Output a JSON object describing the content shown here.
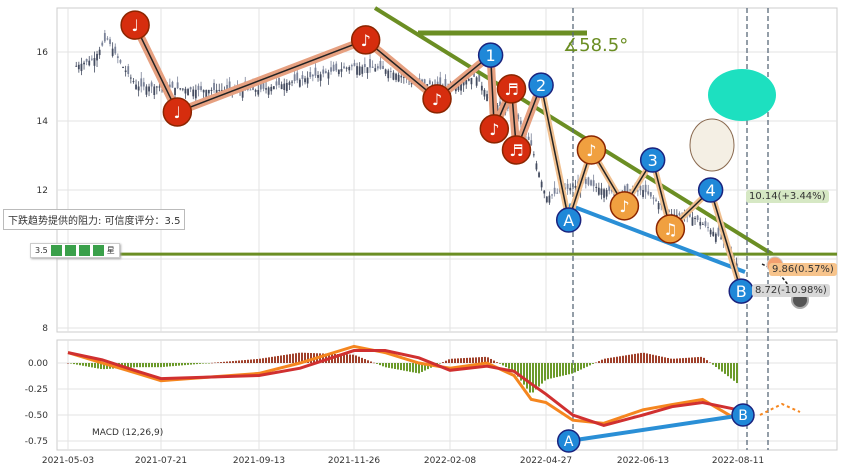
{
  "chart_data": [
    {
      "type": "candlestick",
      "title": "",
      "xlabel": "",
      "ylabel": "",
      "ylim": [
        7.8,
        17.3
      ],
      "grid": true,
      "x_tick_labels": [
        "2021-05-03",
        "2021-07-21",
        "2021-09-13",
        "2021-11-26",
        "2022-02-08",
        "2022-04-27",
        "2022-06-13",
        "2022-08-11"
      ],
      "y_ticks": [
        8,
        12,
        14,
        16
      ],
      "y_tick_labels": [
        "8",
        "12",
        "14",
        "16"
      ],
      "price_path": [
        [
          "2021-05-10",
          15.6
        ],
        [
          "2021-05-25",
          15.8
        ],
        [
          "2021-06-05",
          16.4
        ],
        [
          "2021-06-18",
          15.6
        ],
        [
          "2021-07-01",
          15.0
        ],
        [
          "2021-07-21",
          15.0
        ],
        [
          "2021-08-10",
          14.9
        ],
        [
          "2021-09-13",
          14.9
        ],
        [
          "2021-10-15",
          15.2
        ],
        [
          "2021-11-26",
          15.6
        ],
        [
          "2021-12-20",
          15.5
        ],
        [
          "2022-01-15",
          15.1
        ],
        [
          "2022-02-08",
          15.0
        ],
        [
          "2022-03-01",
          15.3
        ],
        [
          "2022-03-15",
          14.5
        ],
        [
          "2022-04-01",
          14.3
        ],
        [
          "2022-04-15",
          13.3
        ],
        [
          "2022-04-27",
          11.8
        ],
        [
          "2022-05-15",
          12.2
        ],
        [
          "2022-06-01",
          11.9
        ],
        [
          "2022-06-13",
          12.0
        ],
        [
          "2022-07-01",
          11.3
        ],
        [
          "2022-07-15",
          11.2
        ],
        [
          "2022-08-01",
          10.6
        ],
        [
          "2022-08-11",
          9.8
        ]
      ],
      "resistance_level": 10.14,
      "annotations": {
        "resistance_text": "下跌趋势提供的阻力: 可信度评分：3.5",
        "rating_text": "3.5",
        "rating_suffix": "星",
        "angle_text": "∡58.5°",
        "target_up": "10.14(+3.44%)",
        "target_mid": "9.86(0.57%)",
        "target_down": "8.72(-10.98%)"
      },
      "markers": [
        {
          "label": "♩",
          "kind": "red",
          "date": "2021-06-29",
          "price": 16.78
        },
        {
          "label": "♩",
          "kind": "red",
          "date": "2021-07-30",
          "price": 14.26
        },
        {
          "label": "♪",
          "kind": "red",
          "date": "2021-12-05",
          "price": 16.35
        },
        {
          "label": "♪",
          "kind": "red",
          "date": "2022-01-29",
          "price": 14.64
        },
        {
          "label": "1",
          "kind": "blue",
          "date": "2022-03-13",
          "price": 15.91
        },
        {
          "label": "♪",
          "kind": "red",
          "date": "2022-03-16",
          "price": 13.77
        },
        {
          "label": "♬",
          "kind": "red",
          "date": "2022-03-30",
          "price": 14.93
        },
        {
          "label": "♬",
          "kind": "red",
          "date": "2022-04-03",
          "price": 13.16
        },
        {
          "label": "2",
          "kind": "blue",
          "date": "2022-04-23",
          "price": 15.04
        },
        {
          "label": "A",
          "kind": "blue",
          "date": "2022-05-08",
          "price": 11.13
        },
        {
          "label": "♪",
          "kind": "orange",
          "date": "2022-05-19",
          "price": 13.16
        },
        {
          "label": "♪",
          "kind": "orange",
          "date": "2022-06-04",
          "price": 11.54
        },
        {
          "label": "3",
          "kind": "blue",
          "date": "2022-06-19",
          "price": 12.87
        },
        {
          "label": "♫",
          "kind": "orange",
          "date": "2022-06-30",
          "price": 10.87
        },
        {
          "label": "4",
          "kind": "blue",
          "date": "2022-07-25",
          "price": 12.0
        },
        {
          "label": "B",
          "kind": "blue",
          "date": "2022-08-13",
          "price": 9.07
        }
      ],
      "colors": {
        "red": "#d62d0e",
        "blue": "#1f88d8",
        "orange": "#f0a040",
        "trend": "#6b8e23",
        "support": "#2a8fd6"
      }
    },
    {
      "type": "line",
      "title": "",
      "legend_text": "MACD (12,26,9)",
      "ylim": [
        -0.8,
        0.25
      ],
      "y_ticks": [
        0,
        -0.25,
        -0.5,
        -0.75
      ],
      "y_tick_labels": [
        "0.00",
        "-0.25",
        "-0.50",
        "-0.75"
      ],
      "series": [
        {
          "key": "dif",
          "color": "#f5861f",
          "points": [
            [
              "2021-05-03",
              0.1
            ],
            [
              "2021-06-01",
              0.0
            ],
            [
              "2021-07-01",
              -0.1
            ],
            [
              "2021-07-21",
              -0.17
            ],
            [
              "2021-09-13",
              -0.1
            ],
            [
              "2021-10-15",
              0.0
            ],
            [
              "2021-11-26",
              0.16
            ],
            [
              "2021-12-20",
              0.1
            ],
            [
              "2022-01-15",
              0.0
            ],
            [
              "2022-02-08",
              -0.05
            ],
            [
              "2022-03-10",
              0.0
            ],
            [
              "2022-04-01",
              -0.12
            ],
            [
              "2022-04-15",
              -0.35
            ],
            [
              "2022-04-27",
              -0.38
            ],
            [
              "2022-05-10",
              -0.55
            ],
            [
              "2022-05-25",
              -0.58
            ],
            [
              "2022-06-13",
              -0.45
            ],
            [
              "2022-07-01",
              -0.4
            ],
            [
              "2022-07-20",
              -0.35
            ],
            [
              "2022-08-11",
              -0.55
            ]
          ]
        },
        {
          "key": "dea",
          "color": "#d03030",
          "points": [
            [
              "2021-05-03",
              0.1
            ],
            [
              "2021-06-01",
              0.03
            ],
            [
              "2021-07-01",
              -0.08
            ],
            [
              "2021-07-21",
              -0.15
            ],
            [
              "2021-09-13",
              -0.12
            ],
            [
              "2021-10-15",
              -0.05
            ],
            [
              "2021-11-26",
              0.12
            ],
            [
              "2021-12-20",
              0.12
            ],
            [
              "2022-01-15",
              0.05
            ],
            [
              "2022-02-08",
              -0.07
            ],
            [
              "2022-03-10",
              -0.03
            ],
            [
              "2022-04-01",
              -0.08
            ],
            [
              "2022-04-15",
              -0.2
            ],
            [
              "2022-04-27",
              -0.3
            ],
            [
              "2022-05-10",
              -0.5
            ],
            [
              "2022-05-25",
              -0.6
            ],
            [
              "2022-06-13",
              -0.5
            ],
            [
              "2022-07-01",
              -0.42
            ],
            [
              "2022-07-20",
              -0.38
            ],
            [
              "2022-08-11",
              -0.45
            ]
          ]
        }
      ],
      "markers": [
        {
          "label": "A",
          "date": "2022-05-08",
          "value": -0.75
        },
        {
          "label": "B",
          "date": "2022-08-11",
          "value": -0.5
        }
      ]
    }
  ]
}
